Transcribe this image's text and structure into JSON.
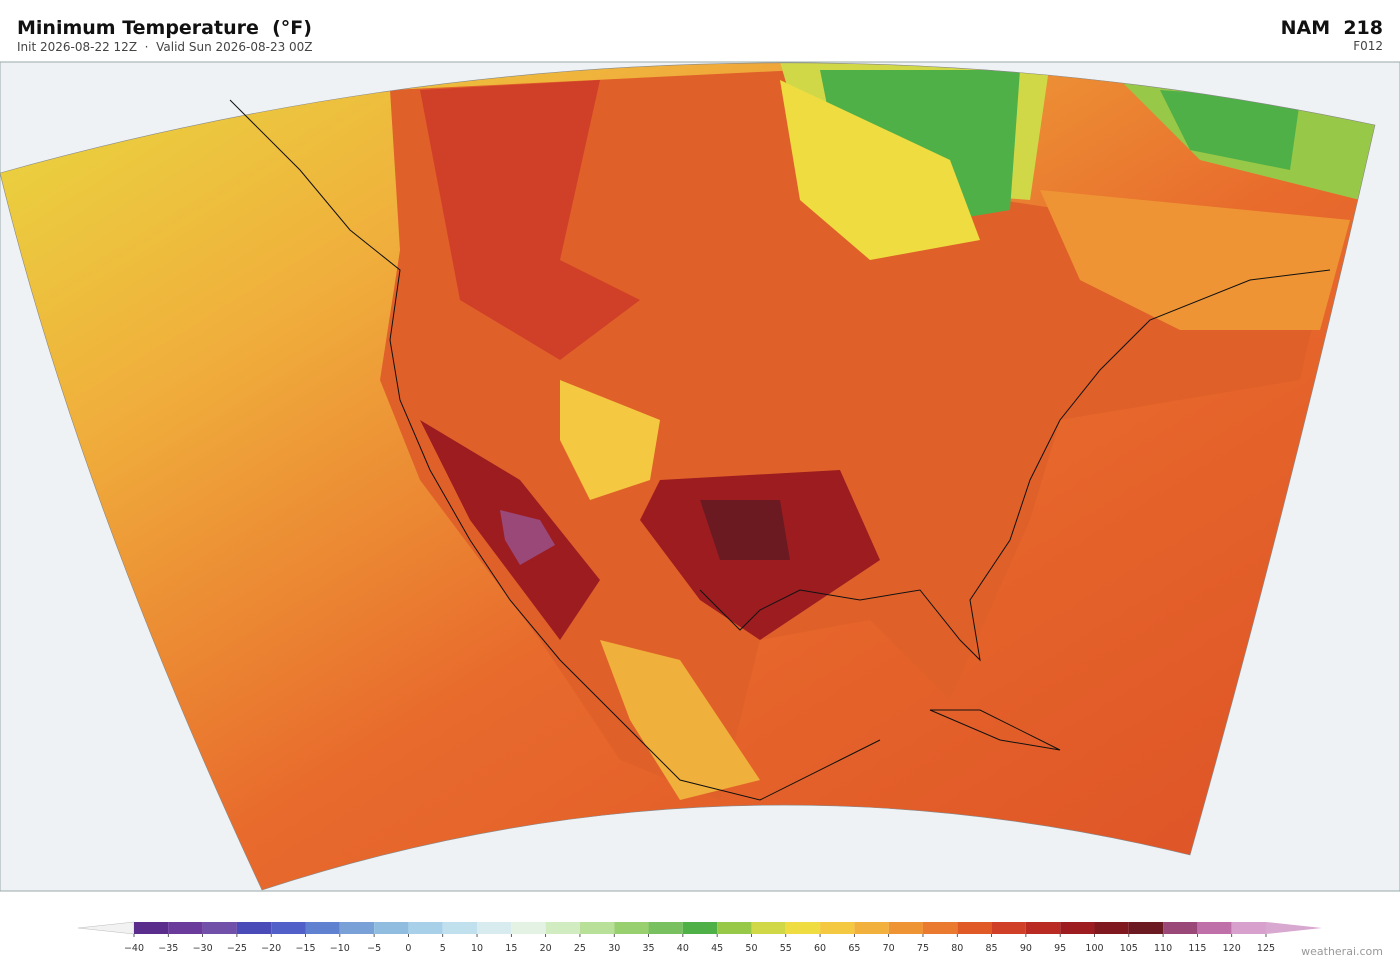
{
  "header": {
    "title": "Minimum Temperature  (°F)",
    "subtitle": "Init 2026-08-22 12Z  ·  Valid Sun 2026-08-23 00Z",
    "model": "NAM  218",
    "forecast_hour": "F012"
  },
  "colorbar": {
    "ticks": [
      {
        "value": -40,
        "label": "−40"
      },
      {
        "value": -35,
        "label": "−35"
      },
      {
        "value": -30,
        "label": "−30"
      },
      {
        "value": -25,
        "label": "−25"
      },
      {
        "value": -20,
        "label": "−20"
      },
      {
        "value": -15,
        "label": "−15"
      },
      {
        "value": -10,
        "label": "−10"
      },
      {
        "value": -5,
        "label": "−5"
      },
      0,
      5,
      10,
      15,
      20,
      25,
      30,
      35,
      40,
      45,
      50,
      55,
      60,
      65,
      70,
      75,
      80,
      85,
      90,
      95,
      100,
      105,
      110,
      115,
      120,
      125
    ],
    "colors": [
      "#5a2d8c",
      "#6a3b9a",
      "#7050a8",
      "#4a4ab8",
      "#5060c8",
      "#6080d0",
      "#7aa0d8",
      "#90bce0",
      "#a8d0e8",
      "#c0e0ee",
      "#d8ecf0",
      "#e4f2e4",
      "#d0ecc0",
      "#b8e098",
      "#98d070",
      "#78c060",
      "#50b048",
      "#98c848",
      "#d0d848",
      "#eedc40",
      "#f4c840",
      "#f2b03c",
      "#ee9434",
      "#ea7a30",
      "#e05a28",
      "#d04028",
      "#b82a22",
      "#9c1c20",
      "#801820",
      "#6c1a22",
      "#9a4878",
      "#c070a8",
      "#d8a0cc"
    ],
    "under_color": "#f2f2f2",
    "over_color": "#d8a8d0"
  },
  "watermark": "weatherai.com"
}
